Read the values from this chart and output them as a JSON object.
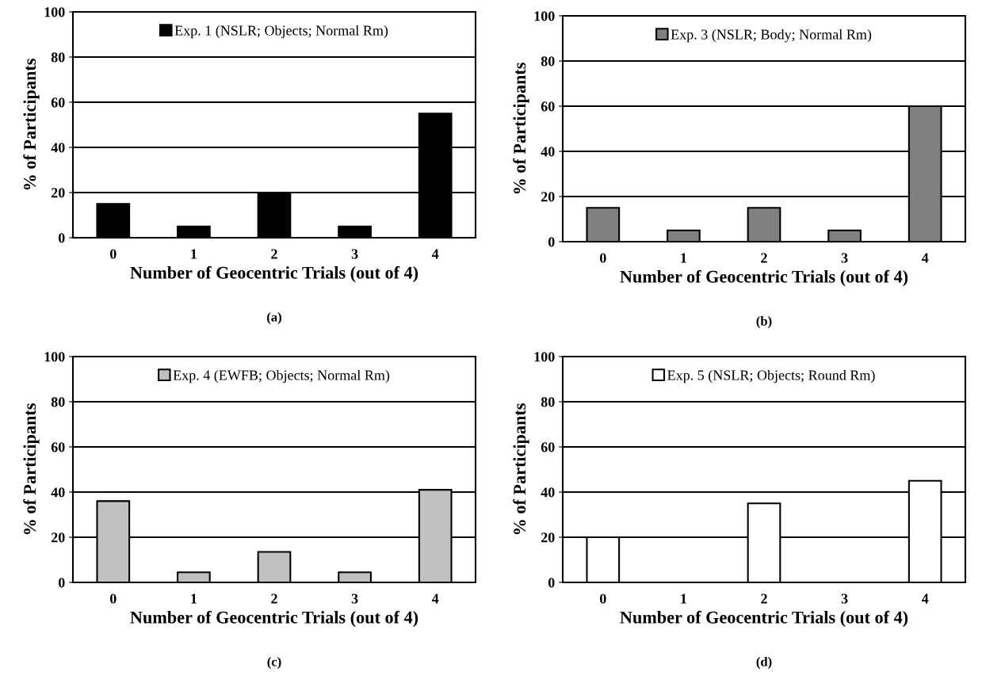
{
  "chart_data": [
    {
      "type": "bar",
      "categories": [
        "0",
        "1",
        "2",
        "3",
        "4"
      ],
      "series": [
        {
          "name": "Exp. 1 (NSLR; Objects; Normal Rm)",
          "color": "#000000",
          "values": [
            15,
            5,
            20,
            5,
            55
          ]
        }
      ],
      "xlabel": "Number of Geocentric Trials (out of 4)",
      "ylabel": "% of Participants",
      "ylim": [
        0,
        100
      ],
      "yticks": [
        0,
        20,
        40,
        60,
        80,
        100
      ],
      "grid": "y",
      "legend": "top",
      "annotations": [
        "(a)"
      ]
    },
    {
      "type": "bar",
      "categories": [
        "0",
        "1",
        "2",
        "3",
        "4"
      ],
      "series": [
        {
          "name": "Exp. 3 (NSLR; Body; Normal Rm)",
          "color": "#808080",
          "values": [
            15,
            5,
            15,
            5,
            60
          ]
        }
      ],
      "xlabel": "Number of Geocentric Trials (out of 4)",
      "ylabel": "% of Participants",
      "ylim": [
        0,
        100
      ],
      "yticks": [
        0,
        20,
        40,
        60,
        80,
        100
      ],
      "grid": "y",
      "legend": "top",
      "annotations": [
        "(b)"
      ]
    },
    {
      "type": "bar",
      "categories": [
        "0",
        "1",
        "2",
        "3",
        "4"
      ],
      "series": [
        {
          "name": "Exp. 4 (EWFB; Objects; Normal Rm)",
          "color": "#c0c0c0",
          "values": [
            36,
            4.5,
            13.5,
            4.5,
            41
          ]
        }
      ],
      "xlabel": "Number of Geocentric Trials (out of 4)",
      "ylabel": "% of Participants",
      "ylim": [
        0,
        100
      ],
      "yticks": [
        0,
        20,
        40,
        60,
        80,
        100
      ],
      "grid": "y",
      "legend": "top",
      "annotations": [
        "(c)"
      ]
    },
    {
      "type": "bar",
      "categories": [
        "0",
        "1",
        "2",
        "3",
        "4"
      ],
      "series": [
        {
          "name": "Exp. 5 (NSLR; Objects; Round Rm)",
          "color": "#ffffff",
          "values": [
            20,
            null,
            35,
            null,
            45
          ]
        }
      ],
      "xlabel": "Number of Geocentric Trials (out of 4)",
      "ylabel": "% of Participants",
      "ylim": [
        0,
        100
      ],
      "yticks": [
        0,
        20,
        40,
        60,
        80,
        100
      ],
      "grid": "y",
      "legend": "top",
      "annotations": [
        "(d)"
      ]
    }
  ]
}
